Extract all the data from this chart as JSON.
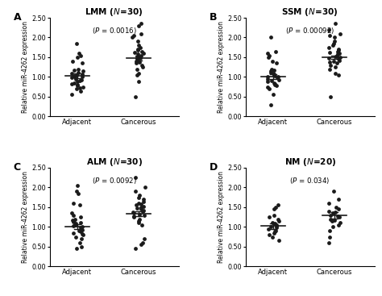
{
  "panels": [
    {
      "label": "A",
      "title_text": "LMM (",
      "title_N": "N",
      "title_n": "=30)",
      "pvalue": "(P = 0.0016)",
      "adjacent_mean": 1.03,
      "adjacent_sem": 0.06,
      "cancerous_mean": 1.47,
      "cancerous_sem": 0.06,
      "adjacent_points": [
        0.55,
        0.65,
        0.7,
        0.72,
        0.75,
        0.78,
        0.8,
        0.82,
        0.85,
        0.88,
        0.9,
        0.92,
        0.95,
        0.98,
        1.0,
        1.0,
        1.02,
        1.05,
        1.08,
        1.1,
        1.12,
        1.15,
        1.18,
        1.2,
        1.35,
        1.4,
        1.5,
        1.55,
        1.6,
        1.85
      ],
      "cancerous_points": [
        0.5,
        0.88,
        1.05,
        1.1,
        1.2,
        1.25,
        1.3,
        1.35,
        1.38,
        1.4,
        1.42,
        1.45,
        1.48,
        1.5,
        1.52,
        1.55,
        1.58,
        1.6,
        1.62,
        1.65,
        1.68,
        1.7,
        1.75,
        1.8,
        1.9,
        2.0,
        2.05,
        2.1,
        2.3,
        2.35
      ]
    },
    {
      "label": "B",
      "title_text": "SSM (",
      "title_N": "N",
      "title_n": "=30)",
      "pvalue": "(P = 0.00092)",
      "adjacent_mean": 1.0,
      "adjacent_sem": 0.06,
      "cancerous_mean": 1.5,
      "cancerous_sem": 0.05,
      "adjacent_points": [
        0.3,
        0.55,
        0.7,
        0.75,
        0.78,
        0.8,
        0.82,
        0.85,
        0.88,
        0.9,
        0.92,
        0.95,
        0.98,
        1.0,
        1.0,
        1.02,
        1.05,
        1.08,
        1.1,
        1.12,
        1.15,
        1.18,
        1.2,
        1.35,
        1.4,
        1.5,
        1.55,
        1.6,
        1.65,
        2.0
      ],
      "cancerous_points": [
        0.5,
        1.05,
        1.1,
        1.2,
        1.25,
        1.3,
        1.35,
        1.38,
        1.4,
        1.42,
        1.45,
        1.48,
        1.5,
        1.52,
        1.55,
        1.58,
        1.6,
        1.62,
        1.65,
        1.68,
        1.7,
        1.75,
        1.8,
        1.85,
        1.9,
        2.0,
        2.05,
        2.1,
        2.2,
        2.35
      ]
    },
    {
      "label": "C",
      "title_text": "ALM (",
      "title_N": "N",
      "title_n": "=30)",
      "pvalue": "(P = 0.0092)",
      "adjacent_mean": 1.01,
      "adjacent_sem": 0.065,
      "cancerous_mean": 1.33,
      "cancerous_sem": 0.06,
      "adjacent_points": [
        0.45,
        0.5,
        0.6,
        0.7,
        0.75,
        0.8,
        0.82,
        0.85,
        0.88,
        0.9,
        0.92,
        0.95,
        0.98,
        1.0,
        1.02,
        1.05,
        1.08,
        1.1,
        1.12,
        1.15,
        1.18,
        1.2,
        1.25,
        1.3,
        1.35,
        1.55,
        1.6,
        1.85,
        1.9,
        2.05
      ],
      "cancerous_points": [
        0.45,
        0.55,
        0.6,
        0.7,
        1.05,
        1.1,
        1.15,
        1.2,
        1.25,
        1.28,
        1.3,
        1.32,
        1.35,
        1.38,
        1.4,
        1.42,
        1.45,
        1.48,
        1.5,
        1.52,
        1.55,
        1.58,
        1.6,
        1.65,
        1.7,
        1.75,
        1.8,
        1.9,
        2.0,
        2.25
      ]
    },
    {
      "label": "D",
      "title_text": "NM (",
      "title_N": "N",
      "title_n": "=20)",
      "pvalue": "(P = 0.034)",
      "adjacent_mean": 1.02,
      "adjacent_sem": 0.07,
      "cancerous_mean": 1.3,
      "cancerous_sem": 0.08,
      "adjacent_points": [
        0.65,
        0.75,
        0.8,
        0.85,
        0.88,
        0.9,
        0.95,
        0.98,
        1.0,
        1.02,
        1.05,
        1.08,
        1.1,
        1.15,
        1.2,
        1.25,
        1.3,
        1.45,
        1.5,
        1.55
      ],
      "cancerous_points": [
        0.6,
        0.75,
        0.9,
        1.0,
        1.05,
        1.1,
        1.15,
        1.18,
        1.2,
        1.25,
        1.28,
        1.3,
        1.35,
        1.38,
        1.4,
        1.45,
        1.5,
        1.6,
        1.7,
        1.9
      ]
    }
  ],
  "ylim": [
    0.0,
    2.5
  ],
  "yticks": [
    0.0,
    0.5,
    1.0,
    1.5,
    2.0,
    2.5
  ],
  "ylabel": "Relative miR-4262 expression",
  "dot_color": "#1a1a1a",
  "dot_size": 12,
  "line_color": "#1a1a1a",
  "line_width": 1.2,
  "jitter_adj": 0.1,
  "background_color": "#ffffff"
}
